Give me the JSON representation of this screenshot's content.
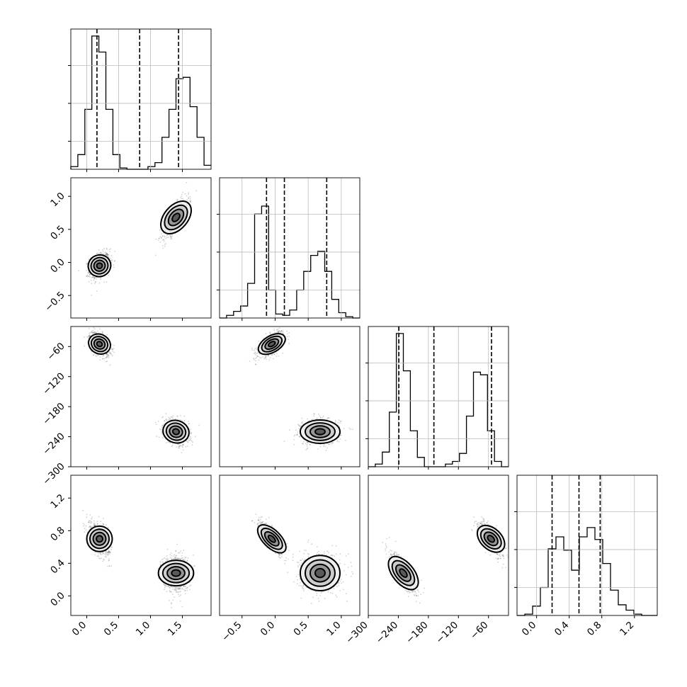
{
  "chart_data": {
    "type": "corner",
    "description_grid": "4x4 lower-triangular corner plot",
    "params": [
      {
        "ticks": [
          0.0,
          0.5,
          1.0,
          1.5
        ],
        "tick_labels": [
          "0.0",
          "0.5",
          "1.0",
          "1.5"
        ],
        "range": [
          -0.25,
          1.95
        ]
      },
      {
        "ticks": [
          -0.5,
          0.0,
          0.5,
          1.0
        ],
        "tick_labels": [
          "−0.5",
          "0.0",
          "0.5",
          "1.0"
        ],
        "range": [
          -0.84,
          1.28
        ]
      },
      {
        "ticks": [
          -300,
          -240,
          -180,
          -120,
          -60
        ],
        "tick_labels": [
          "−300",
          "−240",
          "−180",
          "−120",
          "−60"
        ],
        "range": [
          -300,
          -20
        ]
      },
      {
        "ticks": [
          0.0,
          0.4,
          0.8,
          1.2
        ],
        "tick_labels": [
          "0.0",
          "0.4",
          "0.8",
          "1.2"
        ],
        "range": [
          -0.24,
          1.48
        ]
      }
    ],
    "quantiles": [
      [
        0.16,
        0.83,
        1.44
      ],
      [
        -0.13,
        0.14,
        0.78
      ],
      [
        -239,
        -169,
        -54
      ],
      [
        0.19,
        0.52,
        0.78
      ]
    ],
    "histograms": [
      [
        0.02,
        0.11,
        0.45,
        1.0,
        0.88,
        0.45,
        0.11,
        0.01,
        0,
        0,
        0,
        0.02,
        0.05,
        0.24,
        0.45,
        0.68,
        0.69,
        0.47,
        0.24,
        0.03
      ],
      [
        0,
        0.02,
        0.05,
        0.09,
        0.26,
        0.78,
        0.84,
        0.21,
        0.03,
        0.02,
        0.06,
        0.21,
        0.35,
        0.47,
        0.5,
        0.35,
        0.14,
        0.04,
        0.01,
        0
      ],
      [
        0,
        0.02,
        0.11,
        0.41,
        1.0,
        0.72,
        0.27,
        0.07,
        0.0,
        0,
        0,
        0.02,
        0.04,
        0.1,
        0.38,
        0.71,
        0.69,
        0.27,
        0.04,
        0
      ],
      [
        0,
        0.01,
        0.07,
        0.21,
        0.5,
        0.59,
        0.49,
        0.34,
        0.59,
        0.66,
        0.57,
        0.39,
        0.19,
        0.08,
        0.04,
        0.01,
        0.0,
        0
      ]
    ],
    "clusters": [
      {
        "mean": [
          0.2,
          -0.05,
          -55,
          0.7
        ],
        "sd": [
          0.08,
          0.1,
          12,
          0.1
        ]
      },
      {
        "mean": [
          1.4,
          0.68,
          -230,
          0.28
        ],
        "sd": [
          0.1,
          0.15,
          13,
          0.12
        ]
      }
    ]
  }
}
